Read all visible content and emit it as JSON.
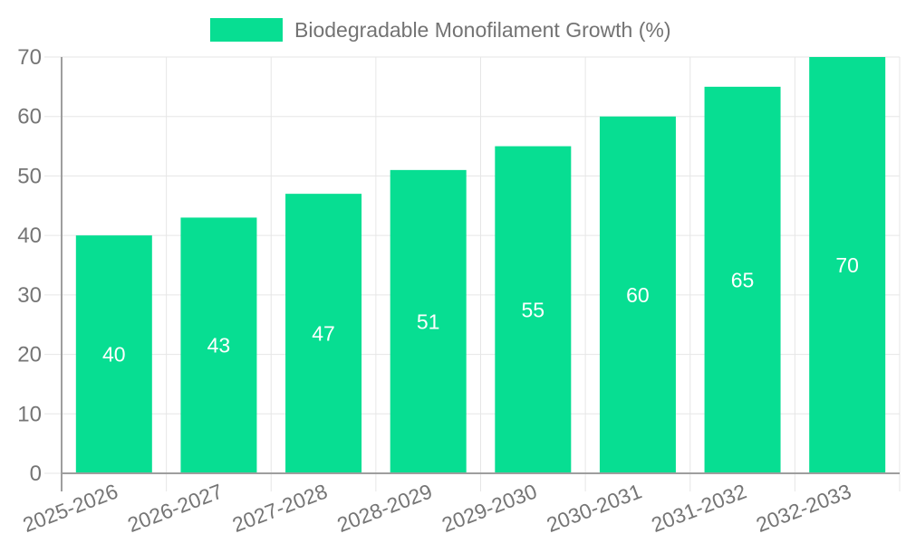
{
  "chart_data": {
    "type": "bar",
    "title": "Biodegradable Monofilament Growth (%)",
    "categories": [
      "2025-2026",
      "2026-2027",
      "2027-2028",
      "2028-2029",
      "2029-2030",
      "2030-2031",
      "2031-2032",
      "2032-2033"
    ],
    "series": [
      {
        "name": "Biodegradable Monofilament Growth (%)",
        "values": [
          40,
          43,
          47,
          51,
          55,
          60,
          65,
          70
        ],
        "color": "#07de92"
      }
    ],
    "bar_value_labels": [
      40,
      43,
      47,
      51,
      55,
      60,
      65,
      70
    ],
    "xlabel": "",
    "ylabel": "",
    "ylim": [
      0,
      70
    ],
    "yticks": [
      0,
      10,
      20,
      30,
      40,
      50,
      60,
      70
    ],
    "grid": true,
    "legend_position": "top-center",
    "x_tick_rotation_deg": -21,
    "colors": {
      "bar": "#07de92",
      "bar_value_text": "#ffffff",
      "grid_line": "#e6e6e6",
      "axis_line": "#9e9e9e",
      "tick_text": "#757575",
      "legend_text": "#737373",
      "background": "#ffffff"
    }
  }
}
